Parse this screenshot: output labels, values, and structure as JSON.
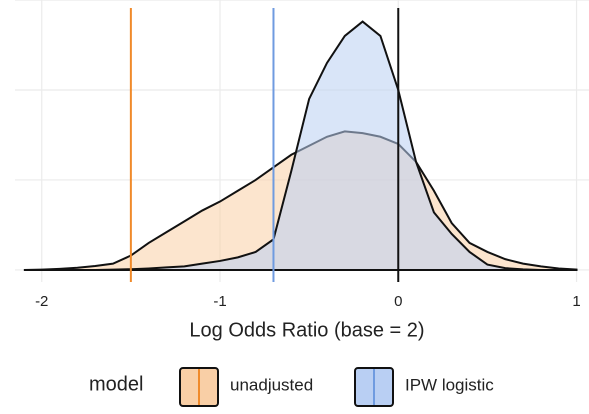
{
  "chart_data": {
    "type": "density",
    "xlabel": "Log Odds Ratio (base = 2)",
    "legend_title": "model",
    "x": [
      -2.1,
      -2.0,
      -1.9,
      -1.8,
      -1.7,
      -1.6,
      -1.5,
      -1.4,
      -1.3,
      -1.2,
      -1.1,
      -1.0,
      -0.9,
      -0.8,
      -0.7,
      -0.6,
      -0.5,
      -0.4,
      -0.3,
      -0.2,
      -0.1,
      0.0,
      0.1,
      0.2,
      0.3,
      0.4,
      0.5,
      0.6,
      0.7,
      0.8,
      0.9,
      1.0
    ],
    "series": [
      {
        "name": "unadjusted",
        "color": "#f5a05a",
        "fill": "#f9cfa6",
        "vline": -1.5,
        "values": [
          0.0,
          0.002,
          0.006,
          0.012,
          0.022,
          0.035,
          0.08,
          0.15,
          0.21,
          0.27,
          0.33,
          0.38,
          0.44,
          0.5,
          0.57,
          0.64,
          0.69,
          0.74,
          0.77,
          0.76,
          0.74,
          0.7,
          0.6,
          0.44,
          0.26,
          0.15,
          0.1,
          0.06,
          0.035,
          0.02,
          0.008,
          0.002
        ]
      },
      {
        "name": "IPW logistic",
        "color": "#6f9be0",
        "fill": "#b9cff3",
        "vline": -0.7,
        "values": [
          0.0,
          0.0,
          0.0,
          0.0,
          0.0,
          0.002,
          0.004,
          0.008,
          0.014,
          0.02,
          0.035,
          0.05,
          0.07,
          0.1,
          0.17,
          0.55,
          0.95,
          1.15,
          1.3,
          1.38,
          1.3,
          1.0,
          0.6,
          0.32,
          0.2,
          0.1,
          0.03,
          0.01,
          0.003,
          0.0,
          0.0,
          0.0
        ]
      }
    ],
    "zero_line": 0,
    "xlim": [
      -2.15,
      1.07
    ],
    "ylim": [
      -0.067,
      1.5
    ],
    "xticks": [
      -2,
      -1,
      0,
      1
    ],
    "yticks": [
      0,
      0.5,
      1,
      1.5
    ],
    "grid": true
  }
}
